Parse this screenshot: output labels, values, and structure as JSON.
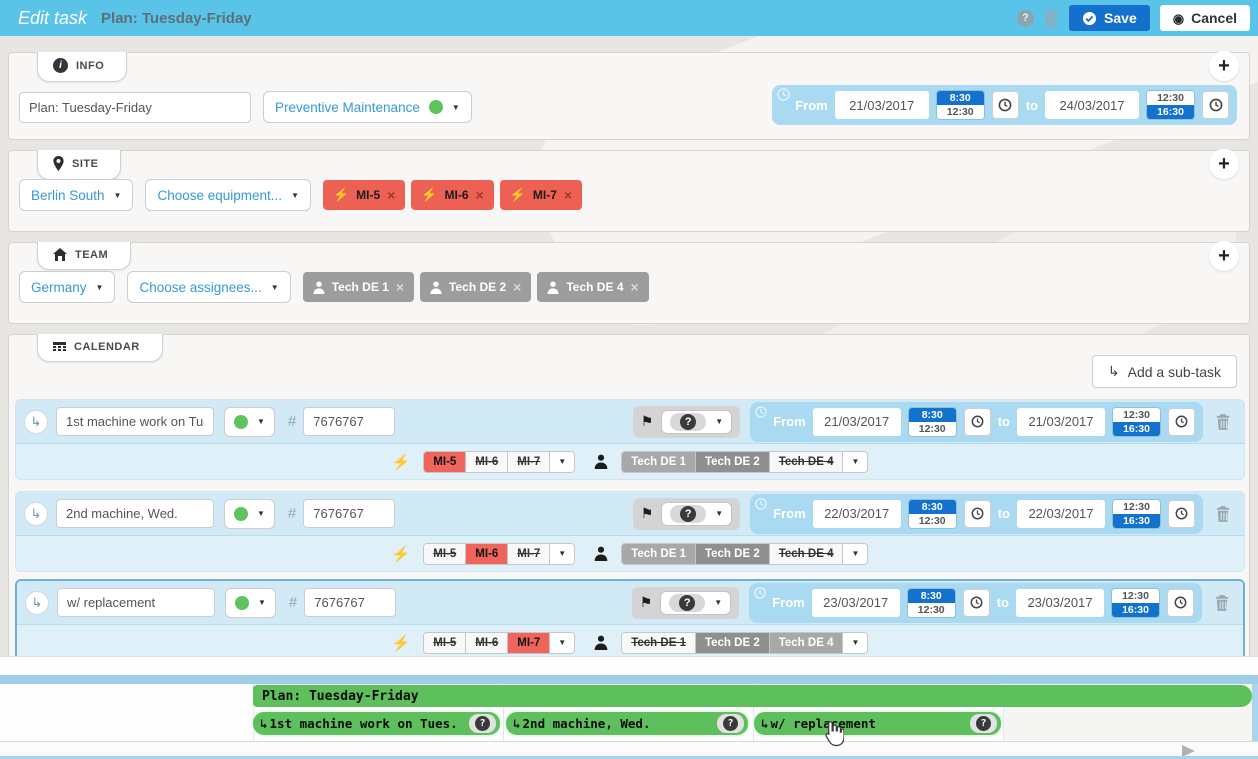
{
  "colors": {
    "header_bg": "#5ac3e8",
    "primary_blue": "#1470cc",
    "widget_blue": "#a9daf2",
    "row_bg": "#d2e9f6",
    "row_bg_alt": "#dff0f9",
    "selected_row_border": "#6fb1d6",
    "tag_red": "#ed6054",
    "toggle_red": "#ef655b",
    "tag_gray": "#9d9d9d",
    "gantt_green": "#5ec05d",
    "strip_blue": "#9fcfe7",
    "status_green": "#5fc35e"
  },
  "header": {
    "mode_label": "Edit task",
    "task_title": "Plan: Tuesday-Friday",
    "save_label": "Save",
    "cancel_label": "Cancel"
  },
  "info": {
    "tab_label": "INFO",
    "name_value": "Plan: Tuesday-Friday",
    "type_value": "Preventive Maintenance",
    "range": {
      "from_label": "From",
      "to_label": "to",
      "from_date": "21/03/2017",
      "from_time_a": "8:30",
      "from_time_b": "12:30",
      "from_selected": "a",
      "to_date": "24/03/2017",
      "to_time_a": "12:30",
      "to_time_b": "16:30",
      "to_selected": "b"
    }
  },
  "site": {
    "tab_label": "SITE",
    "region_value": "Berlin South",
    "equipment_placeholder": "Choose equipment...",
    "tags": [
      {
        "label": "MI-5"
      },
      {
        "label": "MI-6"
      },
      {
        "label": "MI-7"
      }
    ]
  },
  "team": {
    "tab_label": "TEAM",
    "region_value": "Germany",
    "assignee_placeholder": "Choose assignees...",
    "tags": [
      {
        "label": "Tech DE 1"
      },
      {
        "label": "Tech DE 2"
      },
      {
        "label": "Tech DE 4"
      }
    ]
  },
  "calendar": {
    "tab_label": "CALENDAR",
    "add_subtask_label": "Add a sub-task",
    "number_prefix": "#",
    "subtasks": [
      {
        "name": "1st machine work on Tues",
        "number": "7676767",
        "range": {
          "from_label": "From",
          "to_label": "to",
          "from_date": "21/03/2017",
          "from_time_a": "8:30",
          "from_time_b": "12:30",
          "from_selected": "a",
          "to_date": "21/03/2017",
          "to_time_a": "12:30",
          "to_time_b": "16:30",
          "to_selected": "b"
        },
        "equipment": [
          {
            "label": "MI-5",
            "state": "red"
          },
          {
            "label": "MI-6",
            "state": "off"
          },
          {
            "label": "MI-7",
            "state": "off"
          }
        ],
        "assignees": [
          {
            "label": "Tech DE 1",
            "state": "gray"
          },
          {
            "label": "Tech DE 2",
            "state": "graydark"
          },
          {
            "label": "Tech DE 4",
            "state": "off"
          }
        ]
      },
      {
        "name": "2nd machine, Wed.",
        "number": "7676767",
        "range": {
          "from_label": "From",
          "to_label": "to",
          "from_date": "22/03/2017",
          "from_time_a": "8:30",
          "from_time_b": "12:30",
          "from_selected": "a",
          "to_date": "22/03/2017",
          "to_time_a": "12:30",
          "to_time_b": "16:30",
          "to_selected": "b"
        },
        "equipment": [
          {
            "label": "MI-5",
            "state": "off"
          },
          {
            "label": "MI-6",
            "state": "red"
          },
          {
            "label": "MI-7",
            "state": "off"
          }
        ],
        "assignees": [
          {
            "label": "Tech DE 1",
            "state": "gray"
          },
          {
            "label": "Tech DE 2",
            "state": "graydark"
          },
          {
            "label": "Tech DE 4",
            "state": "off"
          }
        ]
      },
      {
        "name": "w/ replacement",
        "number": "7676767",
        "range": {
          "from_label": "From",
          "to_label": "to",
          "from_date": "23/03/2017",
          "from_time_a": "8:30",
          "from_time_b": "12:30",
          "from_selected": "a",
          "to_date": "23/03/2017",
          "to_time_a": "12:30",
          "to_time_b": "16:30",
          "to_selected": "b"
        },
        "equipment": [
          {
            "label": "MI-5",
            "state": "off"
          },
          {
            "label": "MI-6",
            "state": "off"
          },
          {
            "label": "MI-7",
            "state": "red"
          }
        ],
        "assignees": [
          {
            "label": "Tech DE 1",
            "state": "off"
          },
          {
            "label": "Tech DE 2",
            "state": "graydark"
          },
          {
            "label": "Tech DE 4",
            "state": "gray"
          }
        ]
      }
    ]
  },
  "gantt": {
    "plan_label": "Plan: Tuesday-Friday",
    "bars": [
      {
        "label": "1st machine work on Tues."
      },
      {
        "label": "2nd machine, Wed."
      },
      {
        "label": "w/ replacement"
      }
    ]
  }
}
